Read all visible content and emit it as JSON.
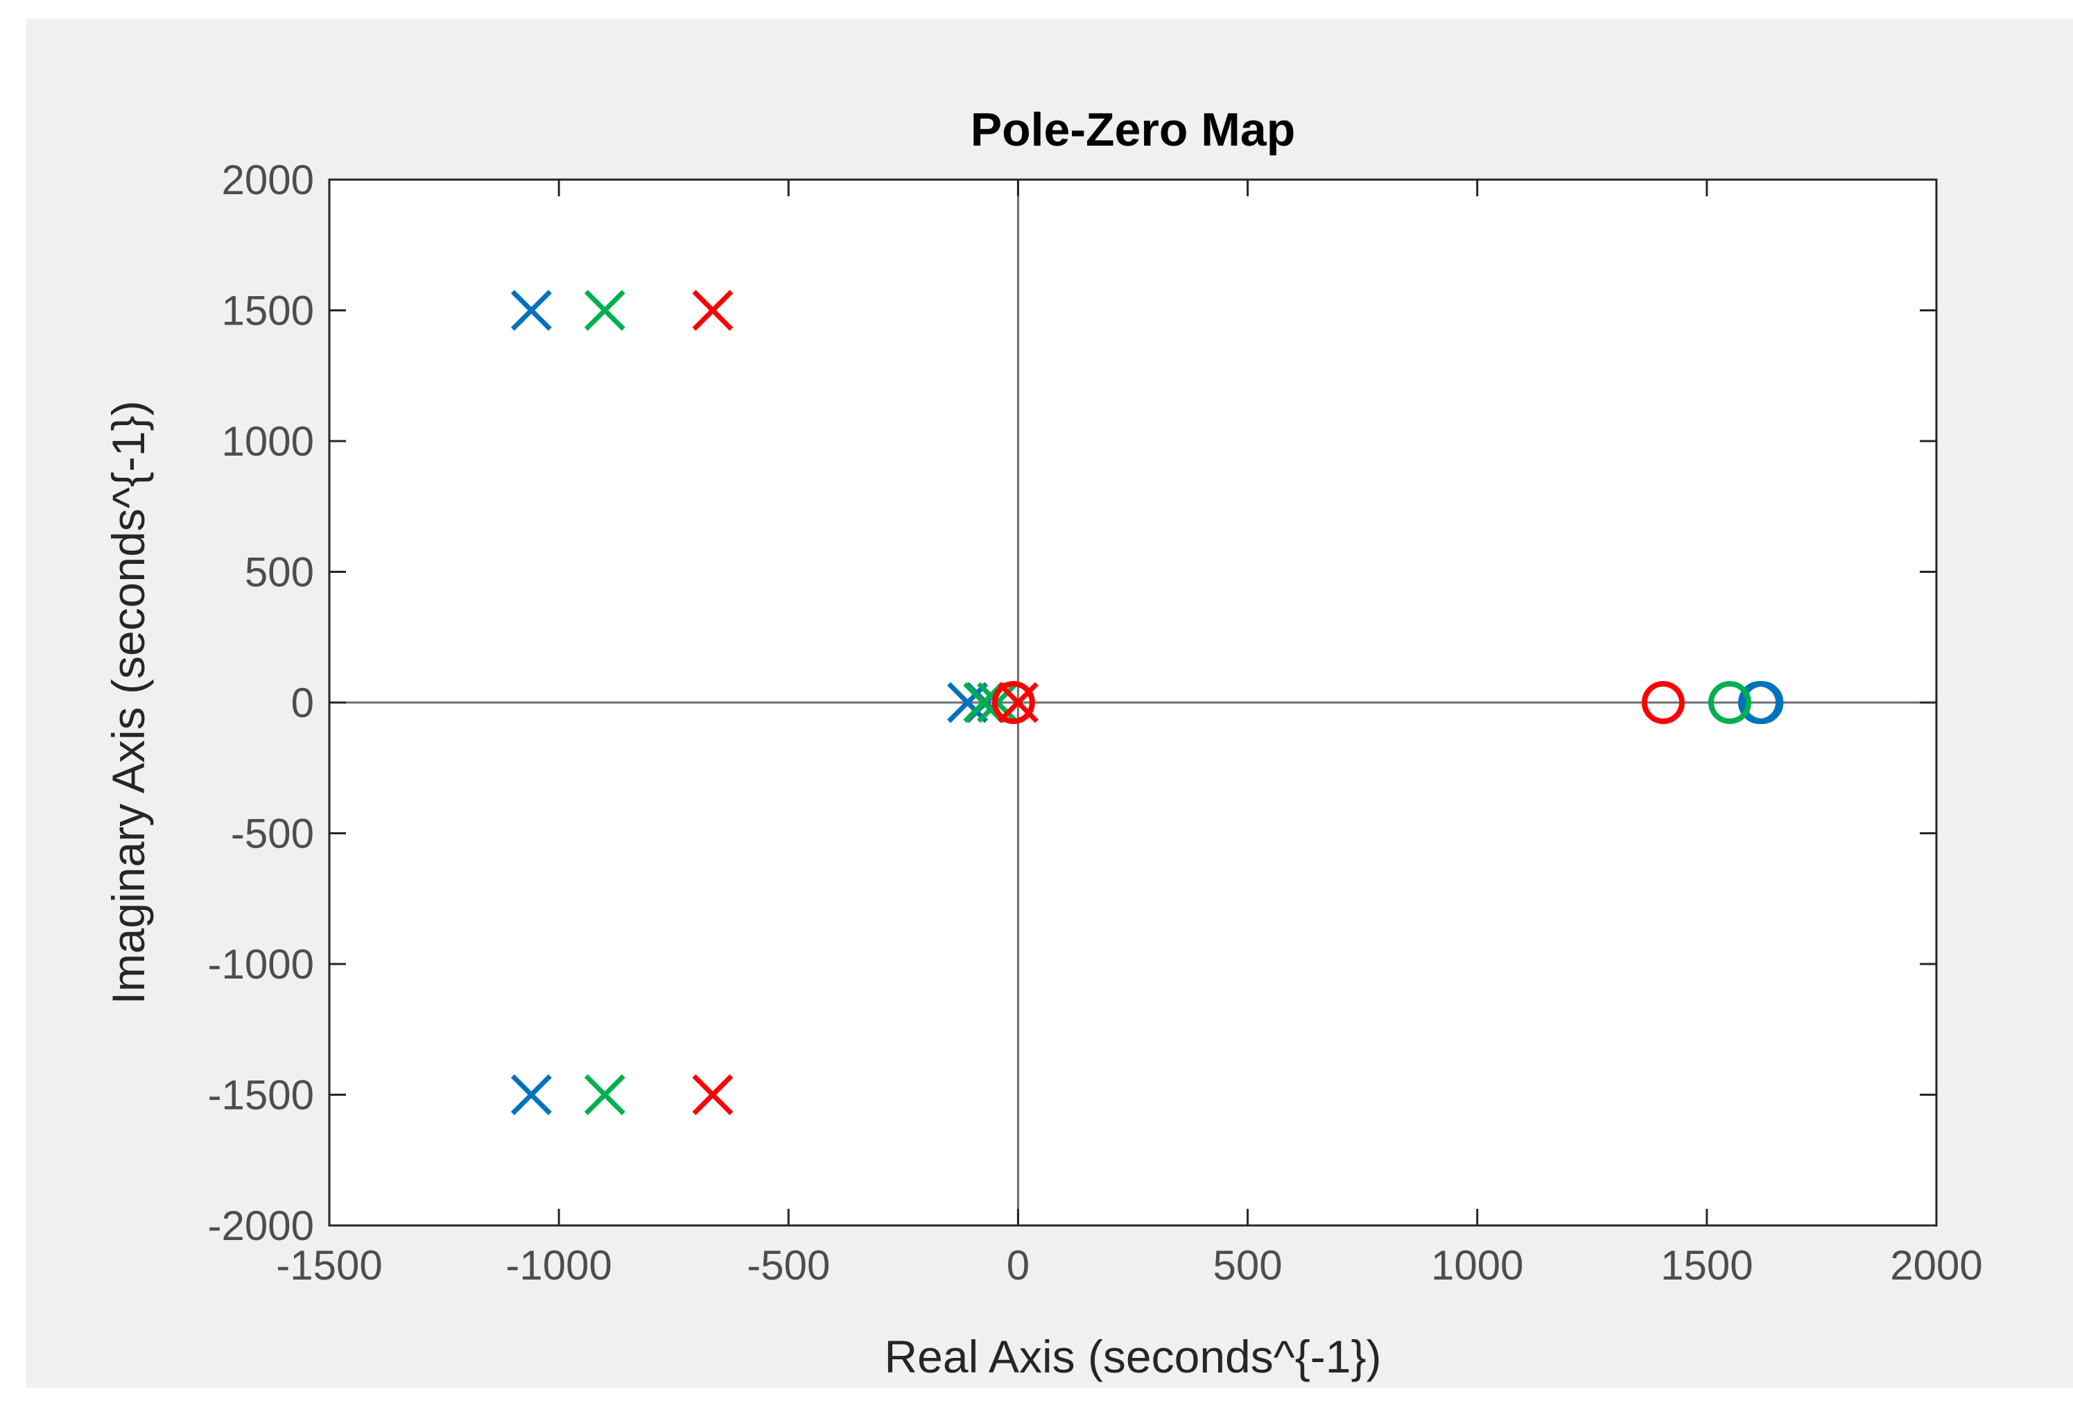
{
  "chart_data": {
    "type": "scatter",
    "title": "Pole-Zero Map",
    "xlabel": "Real Axis (seconds^{-1})",
    "ylabel": "Imaginary Axis (seconds^{-1})",
    "xlim": [
      -1500,
      2000
    ],
    "ylim": [
      -2000,
      2000
    ],
    "xticks": [
      "-1500",
      "-1000",
      "-500",
      "0",
      "500",
      "1000",
      "1500",
      "2000"
    ],
    "yticks": [
      "2000",
      "1500",
      "1000",
      "500",
      "0",
      "-500",
      "-1000",
      "-1500",
      "-2000"
    ],
    "grid": false,
    "legend": "none",
    "series": [
      {
        "color": "#0072bd",
        "poles": [
          [
            -1060,
            1500
          ],
          [
            -1060,
            -1500
          ],
          [
            -110,
            0
          ],
          [
            -70,
            0
          ]
        ],
        "zeros": [
          [
            1615,
            0
          ],
          [
            1620,
            0
          ]
        ]
      },
      {
        "color": "#00b050",
        "poles": [
          [
            -900,
            1500
          ],
          [
            -900,
            -1500
          ],
          [
            -75,
            0
          ],
          [
            -45,
            0
          ]
        ],
        "zeros": [
          [
            1550,
            0
          ]
        ]
      },
      {
        "color": "#ff0000",
        "poles": [
          [
            -665,
            1500
          ],
          [
            -665,
            -1500
          ],
          [
            0,
            0
          ]
        ],
        "zeros": [
          [
            1405,
            0
          ],
          [
            -10,
            0
          ]
        ]
      }
    ]
  }
}
